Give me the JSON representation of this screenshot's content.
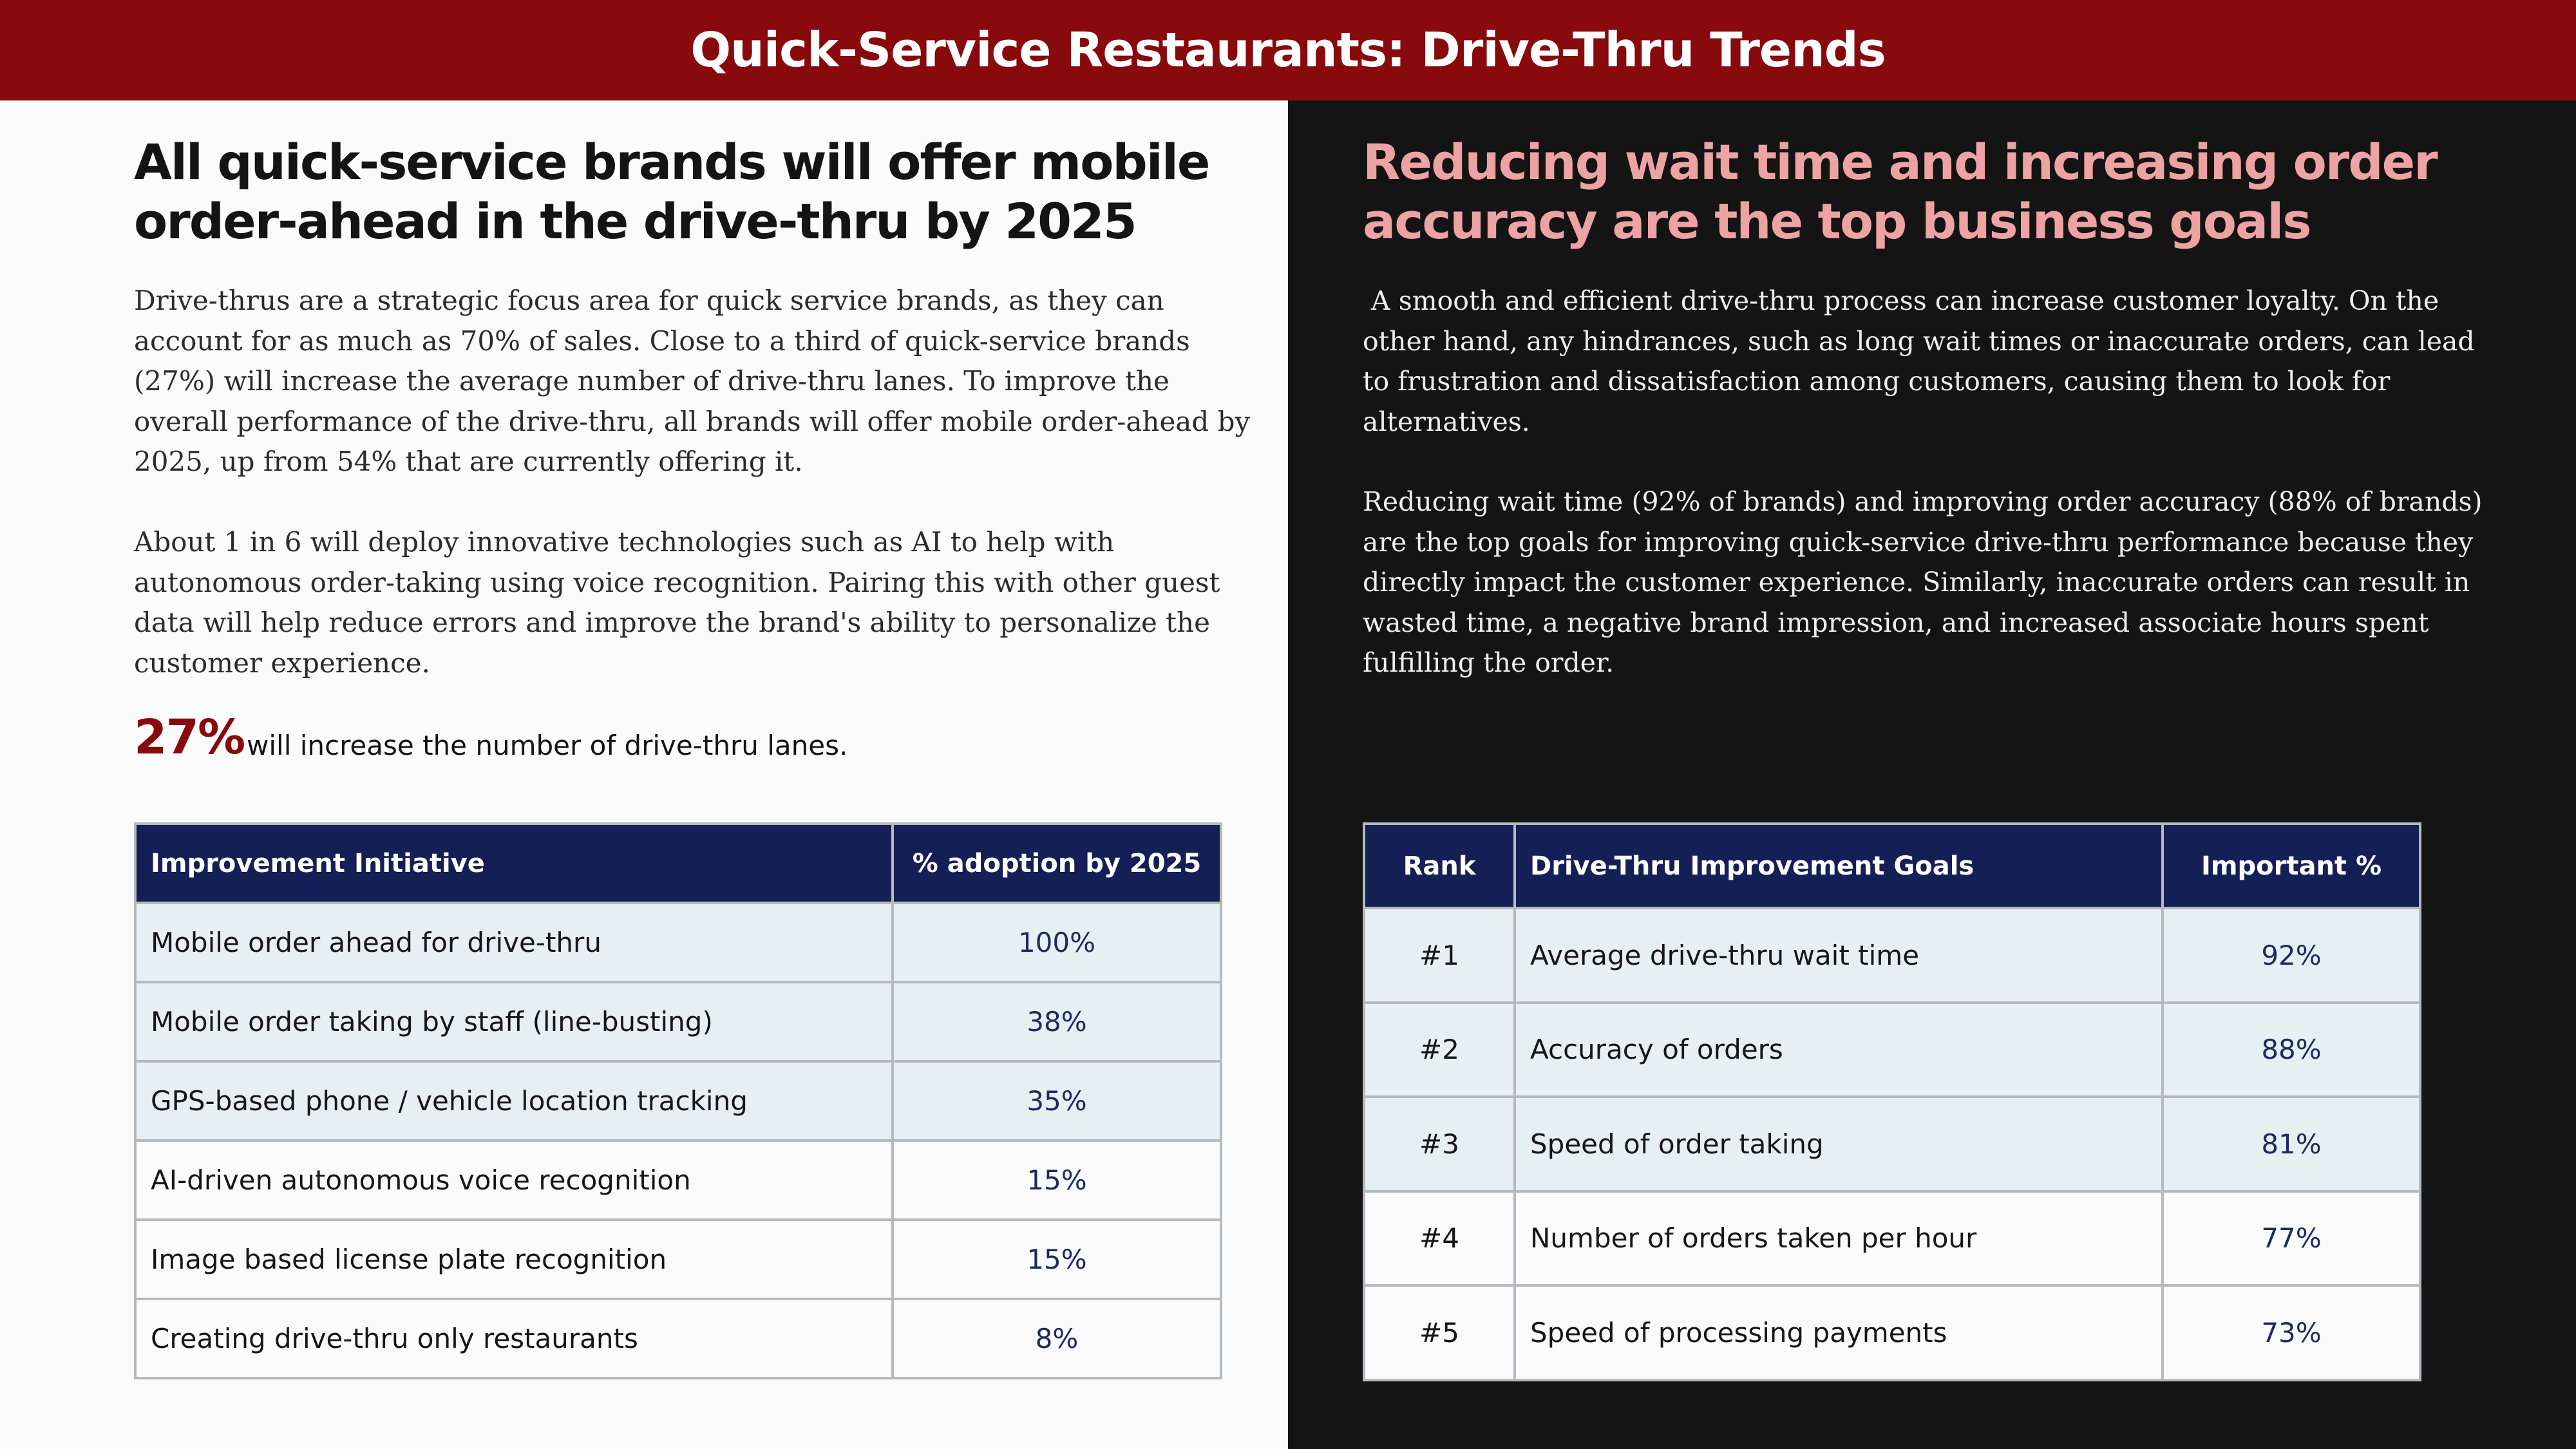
{
  "banner": {
    "title": "Quick-Service Restaurants: Drive-Thru Trends"
  },
  "left": {
    "headline": "All quick-service brands will offer mobile order-ahead in the drive-thru by 2025",
    "paragraph1": "Drive-thrus are a strategic focus area for quick service brands, as they can account for as much as 70% of sales. Close to a third of quick-service brands (27%) will increase the average number of drive-thru lanes. To improve the overall performance of the drive-thru, all brands will offer mobile order-ahead by 2025, up from 54% that are currently offering it.",
    "paragraph2": "About 1 in 6 will deploy innovative technologies such as AI to help with autonomous order-taking using voice recognition. Pairing this with other guest data will help reduce errors and improve the brand's ability to personalize the customer experience.",
    "stat": {
      "number": "27%",
      "text": "will increase the number of drive-thru lanes."
    },
    "table": {
      "headers": [
        "Improvement Initiative",
        "% adoption by 2025"
      ],
      "rows": [
        {
          "label": "Mobile order ahead for drive-thru",
          "value": "100%"
        },
        {
          "label": "Mobile order taking by staff (line-busting)",
          "value": "38%"
        },
        {
          "label": "GPS-based phone / vehicle location tracking",
          "value": "35%"
        },
        {
          "label": "AI-driven autonomous voice recognition",
          "value": "15%"
        },
        {
          "label": "Image based license plate recognition",
          "value": "15%"
        },
        {
          "label": "Creating drive-thru only restaurants",
          "value": "8%"
        }
      ]
    }
  },
  "right": {
    "headline": "Reducing wait time and increasing order accuracy are the top business goals",
    "paragraph1": " A smooth and efficient drive-thru process can increase customer loyalty. On the other hand, any hindrances, such as long wait times or inaccurate orders, can lead to frustration and dissatisfaction among customers, causing them to look for alternatives.",
    "paragraph2": "Reducing wait time (92% of brands) and improving order accuracy (88% of brands) are the top goals for improving quick-service drive-thru performance because they directly impact the customer experience. Similarly, inaccurate orders can result in wasted time, a negative brand impression, and increased associate hours spent fulfilling the order.",
    "table": {
      "headers": [
        "Rank",
        "Drive-Thru Improvement Goals",
        "Important %"
      ],
      "rows": [
        {
          "rank": "#1",
          "label": "Average drive-thru wait time",
          "value": "92%"
        },
        {
          "rank": "#2",
          "label": "Accuracy of orders",
          "value": "88%"
        },
        {
          "rank": "#3",
          "label": "Speed of order taking",
          "value": "81%"
        },
        {
          "rank": "#4",
          "label": "Number of orders taken per hour",
          "value": "77%"
        },
        {
          "rank": "#5",
          "label": "Speed of processing payments",
          "value": "73%"
        }
      ]
    }
  },
  "colors": {
    "banner": "#880a0c",
    "accent_red": "#880a0c",
    "accent_pink": "#eda2a4",
    "table_header": "#141f56",
    "row_shade": "#e6eff2",
    "dark_panel": "#141414"
  }
}
